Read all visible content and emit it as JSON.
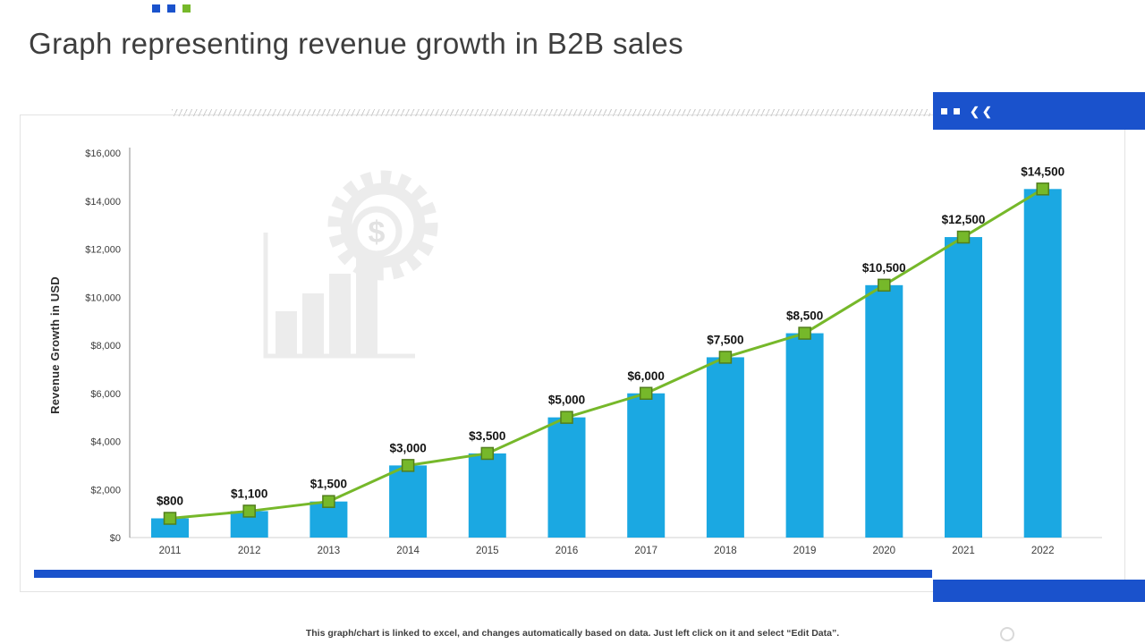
{
  "slide": {
    "title": "Graph representing revenue growth in B2B sales",
    "footer_note": "This graph/chart is linked to excel, and changes automatically based on data. Just left click on it and select “Edit Data”."
  },
  "decor": {
    "chevrons": "❮❮"
  },
  "colors": {
    "bar": "#1BA8E2",
    "line": "#76B82A",
    "marker_fill": "#76B82A",
    "marker_border": "#527F1C",
    "accent_blue": "#1A52CC",
    "accent_green": "#76B82A",
    "watermark": "#ececec"
  },
  "chart_data": {
    "type": "bar+line",
    "categories": [
      "2011",
      "2012",
      "2013",
      "2014",
      "2015",
      "2016",
      "2017",
      "2018",
      "2019",
      "2020",
      "2021",
      "2022"
    ],
    "values": [
      800,
      1100,
      1500,
      3000,
      3500,
      5000,
      6000,
      7500,
      8500,
      10500,
      12500,
      14500
    ],
    "value_labels": [
      "$800",
      "$1,100",
      "$1,500",
      "$3,000",
      "$3,500",
      "$5,000",
      "$6,000",
      "$7,500",
      "$8,500",
      "$10,500",
      "$12,500",
      "$14,500"
    ],
    "title": "",
    "xlabel": "",
    "ylabel": "Revenue Growth in USD",
    "ylim": [
      0,
      16000
    ],
    "ytick_step": 2000,
    "ytick_labels": [
      "$0",
      "$2,000",
      "$4,000",
      "$6,000",
      "$8,000",
      "$10,000",
      "$12,000",
      "$14,000",
      "$16,000"
    ],
    "grid": false,
    "legend": "none"
  }
}
